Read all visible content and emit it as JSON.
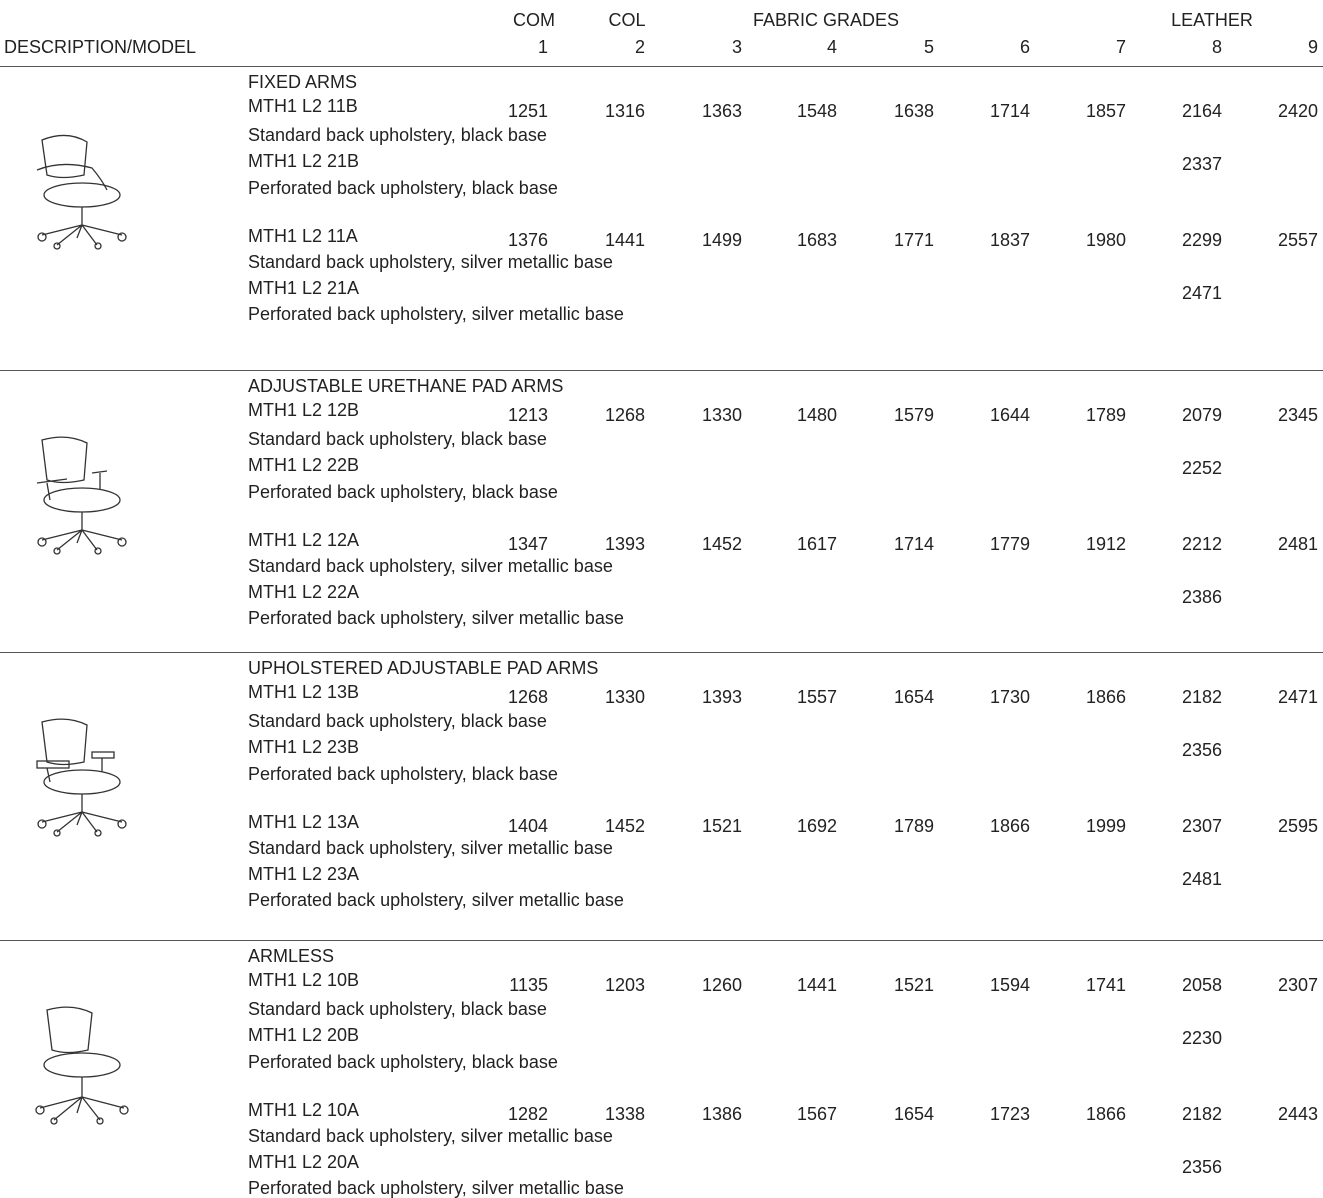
{
  "header": {
    "label": "DESCRIPTION/MODEL",
    "groups": [
      "COM",
      "COL",
      "FABRIC GRADES",
      "LEATHER"
    ],
    "columns": [
      "1",
      "2",
      "3",
      "4",
      "5",
      "6",
      "7",
      "8",
      "9"
    ]
  },
  "sections": [
    {
      "title": "FIXED ARMS",
      "models": [
        {
          "code": "MTH1 L2 11B",
          "description": "Standard back upholstery, black base",
          "prices": [
            1251,
            1316,
            1363,
            1548,
            1638,
            1714,
            1857,
            2164,
            2420
          ]
        },
        {
          "code": "MTH1 L2 21B",
          "description": "Perforated back upholstery, black base",
          "prices": [
            null,
            null,
            null,
            null,
            null,
            null,
            null,
            2337,
            null
          ]
        },
        {
          "code": "MTH1 L2 11A",
          "description": "Standard back upholstery, silver metallic base",
          "prices": [
            1376,
            1441,
            1499,
            1683,
            1771,
            1837,
            1980,
            2299,
            2557
          ]
        },
        {
          "code": "MTH1 L2 21A",
          "description": "Perforated back upholstery, silver metallic base",
          "prices": [
            null,
            null,
            null,
            null,
            null,
            null,
            null,
            2471,
            null
          ]
        }
      ]
    },
    {
      "title": "ADJUSTABLE URETHANE PAD ARMS",
      "models": [
        {
          "code": "MTH1 L2 12B",
          "description": "Standard back upholstery, black base",
          "prices": [
            1213,
            1268,
            1330,
            1480,
            1579,
            1644,
            1789,
            2079,
            2345
          ]
        },
        {
          "code": "MTH1 L2 22B",
          "description": "Perforated back upholstery, black base",
          "prices": [
            null,
            null,
            null,
            null,
            null,
            null,
            null,
            2252,
            null
          ]
        },
        {
          "code": "MTH1 L2 12A",
          "description": "Standard back upholstery, silver metallic base",
          "prices": [
            1347,
            1393,
            1452,
            1617,
            1714,
            1779,
            1912,
            2212,
            2481
          ]
        },
        {
          "code": "MTH1 L2 22A",
          "description": "Perforated back upholstery, silver metallic base",
          "prices": [
            null,
            null,
            null,
            null,
            null,
            null,
            null,
            2386,
            null
          ]
        }
      ]
    },
    {
      "title": "UPHOLSTERED ADJUSTABLE PAD ARMS",
      "models": [
        {
          "code": "MTH1 L2 13B",
          "description": "Standard back upholstery, black base",
          "prices": [
            1268,
            1330,
            1393,
            1557,
            1654,
            1730,
            1866,
            2182,
            2471
          ]
        },
        {
          "code": "MTH1 L2 23B",
          "description": "Perforated back upholstery, black base",
          "prices": [
            null,
            null,
            null,
            null,
            null,
            null,
            null,
            2356,
            null
          ]
        },
        {
          "code": "MTH1 L2 13A",
          "description": "Standard back upholstery, silver metallic base",
          "prices": [
            1404,
            1452,
            1521,
            1692,
            1789,
            1866,
            1999,
            2307,
            2595
          ]
        },
        {
          "code": "MTH1 L2 23A",
          "description": "Perforated back upholstery, silver metallic base",
          "prices": [
            null,
            null,
            null,
            null,
            null,
            null,
            null,
            2481,
            null
          ]
        }
      ]
    },
    {
      "title": "ARMLESS",
      "models": [
        {
          "code": "MTH1 L2 10B",
          "description": "Standard back upholstery, black base",
          "prices": [
            1135,
            1203,
            1260,
            1441,
            1521,
            1594,
            1741,
            2058,
            2307
          ]
        },
        {
          "code": "MTH1 L2 20B",
          "description": "Perforated back upholstery, black base",
          "prices": [
            null,
            null,
            null,
            null,
            null,
            null,
            null,
            2230,
            null
          ]
        },
        {
          "code": "MTH1 L2 10A",
          "description": "Standard back upholstery, silver metallic base",
          "prices": [
            1282,
            1338,
            1386,
            1567,
            1654,
            1723,
            1866,
            2182,
            2443
          ]
        },
        {
          "code": "MTH1 L2 20A",
          "description": "Perforated back upholstery, silver metallic base",
          "prices": [
            null,
            null,
            null,
            null,
            null,
            null,
            null,
            2356,
            null
          ]
        }
      ]
    }
  ]
}
